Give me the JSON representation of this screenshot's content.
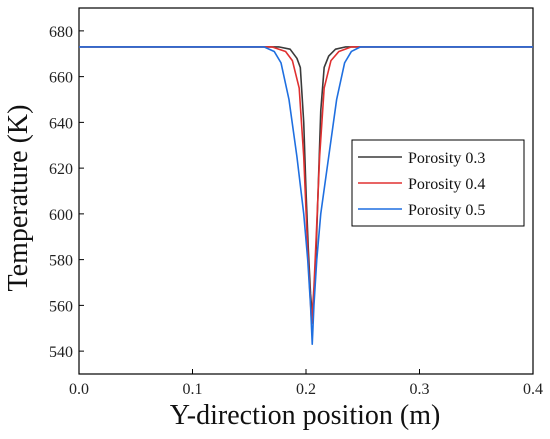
{
  "chart_data": {
    "type": "line",
    "xlabel": "Y-direction position (m)",
    "ylabel": "Temperature (K)",
    "xlim": [
      0.0,
      0.4
    ],
    "ylim": [
      530,
      690
    ],
    "xticks": [
      0.0,
      0.1,
      0.2,
      0.3,
      0.4
    ],
    "xtick_labels": [
      "0.0",
      "0.1",
      "0.2",
      "0.3",
      "0.4"
    ],
    "yticks": [
      540,
      560,
      580,
      600,
      620,
      640,
      660,
      680
    ],
    "ytick_labels": [
      "540",
      "560",
      "580",
      "600",
      "620",
      "640",
      "660",
      "680"
    ],
    "grid": false,
    "legend_position": "right",
    "series": [
      {
        "name": "Porosity 0.3",
        "color": "#3a3a3a",
        "points": [
          [
            0.0,
            673
          ],
          [
            0.176,
            673
          ],
          [
            0.186,
            672
          ],
          [
            0.192,
            668
          ],
          [
            0.195,
            664
          ],
          [
            0.198,
            640
          ],
          [
            0.2,
            610
          ],
          [
            0.202,
            585
          ],
          [
            0.204,
            565
          ],
          [
            0.2055,
            556
          ],
          [
            0.207,
            565
          ],
          [
            0.209,
            585
          ],
          [
            0.211,
            615
          ],
          [
            0.213,
            645
          ],
          [
            0.216,
            664
          ],
          [
            0.22,
            669
          ],
          [
            0.226,
            672
          ],
          [
            0.235,
            673
          ],
          [
            0.4,
            673
          ]
        ]
      },
      {
        "name": "Porosity 0.4",
        "color": "#e03030",
        "points": [
          [
            0.0,
            673
          ],
          [
            0.17,
            673
          ],
          [
            0.182,
            671
          ],
          [
            0.188,
            667
          ],
          [
            0.194,
            655
          ],
          [
            0.198,
            625
          ],
          [
            0.201,
            590
          ],
          [
            0.203,
            570
          ],
          [
            0.205,
            552
          ],
          [
            0.207,
            568
          ],
          [
            0.209,
            590
          ],
          [
            0.212,
            625
          ],
          [
            0.216,
            655
          ],
          [
            0.222,
            667
          ],
          [
            0.229,
            671
          ],
          [
            0.24,
            673
          ],
          [
            0.4,
            673
          ]
        ]
      },
      {
        "name": "Porosity 0.5",
        "color": "#1f6fe0",
        "points": [
          [
            0.0,
            673
          ],
          [
            0.163,
            673
          ],
          [
            0.172,
            671
          ],
          [
            0.178,
            666
          ],
          [
            0.185,
            650
          ],
          [
            0.192,
            625
          ],
          [
            0.198,
            600
          ],
          [
            0.2015,
            580
          ],
          [
            0.204,
            560
          ],
          [
            0.2055,
            543
          ],
          [
            0.207,
            560
          ],
          [
            0.2095,
            580
          ],
          [
            0.213,
            600
          ],
          [
            0.22,
            625
          ],
          [
            0.227,
            650
          ],
          [
            0.234,
            666
          ],
          [
            0.24,
            671
          ],
          [
            0.248,
            673
          ],
          [
            0.4,
            673
          ]
        ]
      }
    ]
  }
}
